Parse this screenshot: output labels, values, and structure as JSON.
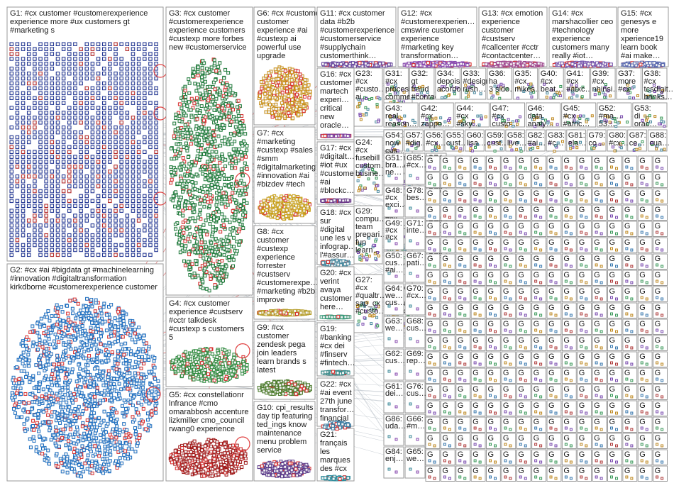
{
  "colors": {
    "background": "#ffffff",
    "box_border": "#9a9a9a",
    "edge_gray": "#9aa6b0",
    "edge_red": "#e06060",
    "loop_red": "#e04040"
  },
  "groups": [
    {
      "id": "G1",
      "lines": [
        "G1: #cx customer #customerexperience",
        "experience more #ux customers gt",
        "#marketing s"
      ],
      "color": "#1a2f8f",
      "style": "grid"
    },
    {
      "id": "G2",
      "lines": [
        "G2: #cx #ai #bigdata gt #machinelearning",
        "#innovation #digitaltransformation",
        "kirkdborne #customerexperience customer"
      ],
      "color": "#1f6fc0",
      "style": "cluster"
    },
    {
      "id": "G3",
      "lines": [
        "G3: #cx customer",
        "#customerexperience",
        "experience customers",
        "#custexp more forbes",
        "new #customerservice"
      ],
      "color": "#1e7a3a",
      "style": "cluster"
    },
    {
      "id": "G4",
      "lines": [
        "G4: #cx customer",
        "experience #custserv",
        "#cctr talkdesk",
        "#custexp s customers",
        "5"
      ],
      "color": "#2e8a3e",
      "style": "cluster"
    },
    {
      "id": "G5",
      "lines": [
        "G5: #cx constellationr",
        "lnfrance #cmo",
        "omarabbosh accenture",
        "lizkmiller cmo_council",
        "rwang0 experience"
      ],
      "color": "#a01818",
      "style": "cluster"
    },
    {
      "id": "G6",
      "lines": [
        "G6: #cx #customexpe…",
        "customer",
        "experience #ai",
        "#custexp ai",
        "powerful use",
        "upgrade"
      ],
      "color": "#c8901a",
      "style": "cluster"
    },
    {
      "id": "G7",
      "lines": [
        "G7: #cx",
        "#marketing",
        "#custexp #sales",
        "#smm",
        "#digitalmarketing",
        "#innovation #ai",
        "#bizdev #tech"
      ],
      "color": "#c8a01a",
      "style": "cluster"
    },
    {
      "id": "G8",
      "lines": [
        "G8: #cx",
        "customer",
        "#custexp",
        "experience",
        "forrester",
        "#custserv",
        "#customerexpe…",
        "#marketing #b2b",
        "improve"
      ],
      "color": "#b8a030",
      "style": "cluster"
    },
    {
      "id": "G9",
      "lines": [
        "G9: #cx",
        "customer",
        "zendesk pega",
        "join leaders",
        "learn brands s",
        "latest"
      ],
      "color": "#4a7a2a",
      "style": "cluster"
    },
    {
      "id": "G10",
      "lines": [
        "G10: cpi_results",
        "day tip featuring",
        "ted_ings know",
        "maintenance",
        "menu problem",
        "service"
      ],
      "color": "#5a3a8a",
      "style": "cluster"
    },
    {
      "id": "G11",
      "lines": [
        "G11: #cx customer",
        "data #b2b",
        "#customerexperience",
        "#customerservice",
        "#supplychain",
        "customerthink…"
      ],
      "color": "#6a4aa0",
      "style": "cluster"
    },
    {
      "id": "G12",
      "lines": [
        "G12: #cx",
        "#customerexperien…",
        "cmswire customer",
        "experience",
        "#marketing key",
        "transformation…"
      ],
      "color": "#8a4ab0",
      "style": "cluster"
    },
    {
      "id": "G13",
      "lines": [
        "G13: #cx emotion",
        "experience",
        "customer",
        "#custserv",
        "#callcenter #cctr",
        "#contactcenter…"
      ],
      "color": "#a04a90",
      "style": "cluster"
    },
    {
      "id": "G14",
      "lines": [
        "G14: #cx",
        "marshacollier ceo",
        "#technology",
        "experience",
        "customers many",
        "really #iot…"
      ],
      "color": "#7a5ab0",
      "style": "cluster"
    },
    {
      "id": "G15",
      "lines": [
        "G15: #cx",
        "genesys e",
        "more",
        "xperience19",
        "learn book",
        "#ai make…"
      ],
      "color": "#5a6ab0",
      "style": "cluster"
    },
    {
      "id": "G16",
      "lines": [
        "G16: #cx",
        "customer",
        "martech",
        "experi…",
        "critical",
        "new",
        "oracle…"
      ],
      "color": "#7a3a9a",
      "style": "cluster"
    },
    {
      "id": "G17",
      "lines": [
        "G17: #cx",
        "#digitalt…",
        "#iot #ux",
        "#customer",
        "#ai",
        "#blockc…"
      ],
      "color": "#6a3a8a",
      "style": "cluster"
    },
    {
      "id": "G18",
      "lines": [
        "G18: #cx",
        "sur",
        "#digital",
        "une les v",
        "infograp…",
        "l'#assur…"
      ],
      "color": "#4a8aa0",
      "style": "cluster"
    },
    {
      "id": "G19",
      "lines": [
        "G19:",
        "#banking",
        "#cx dei",
        "#finserv",
        "#fintech…"
      ],
      "color": "#3a8a8a",
      "style": "cluster"
    },
    {
      "id": "G20",
      "lines": [
        "G20: #cx",
        "verint",
        "avaya",
        "customer",
        "here…"
      ],
      "color": "#3a9a7a",
      "style": "cluster"
    },
    {
      "id": "G21",
      "lines": [
        "G21:",
        "français",
        "les",
        "marques",
        "des #cx"
      ],
      "color": "#2a8a9a",
      "style": "cluster"
    },
    {
      "id": "G22",
      "lines": [
        "G22: #cx",
        "#ai event",
        "27th june",
        "transfor…",
        "financial"
      ],
      "color": "#3a7aa0",
      "style": "cluster"
    }
  ],
  "mini_groups": [
    {
      "label": "G23:",
      "lines": [
        "#cx",
        "#custo…",
        "ai…"
      ]
    },
    {
      "label": "G25:",
      "lines": [
        "#ai",
        "#machi…",
        "#reactis",
        "sale…"
      ]
    },
    {
      "label": "G24:",
      "lines": [
        "#cx",
        "fusebill",
        "custom…",
        "busine…"
      ]
    },
    {
      "label": "G28:",
      "lines": [
        "#cx",
        "insights",
        "giesec…",
        "money…"
      ]
    },
    {
      "label": "G29:",
      "lines": [
        "compu…",
        "team",
        "prepari…",
        "fun",
        "learn…"
      ]
    },
    {
      "label": "G26:",
      "lines": [
        "#cx",
        "teleopti",
        "new",
        "standa…"
      ]
    },
    {
      "label": "G27:",
      "lines": [
        "#cx",
        "#qualtr…",
        "sap_cx",
        "#custo…"
      ]
    },
    {
      "label": "G30:",
      "lines": [
        "#cx #cs",
        "deptve…",
        "custom…",
        "check…"
      ]
    },
    {
      "label": "G31:",
      "lines": [
        "#cx",
        "process",
        "commerc…"
      ]
    },
    {
      "label": "G32:",
      "lines": [
        "gt",
        "fraud",
        "#contact…"
      ]
    },
    {
      "label": "G34:",
      "lines": [
        "depois",
        "acordo…"
      ]
    },
    {
      "label": "G33:",
      "lines": [
        "#design",
        "rush…"
      ]
    },
    {
      "label": "G36:",
      "lines": [
        "ha",
        "3 sido…"
      ]
    },
    {
      "label": "G35:",
      "lines": [
        "#cx",
        "mikes…"
      ]
    },
    {
      "label": "G40:",
      "lines": [
        "#cx",
        "beat…"
      ]
    },
    {
      "label": "G41:",
      "lines": [
        "#cx",
        "#atxc…"
      ]
    },
    {
      "label": "G39:",
      "lines": [
        "#cx",
        "nhinsi…"
      ]
    },
    {
      "label": "G37:",
      "lines": [
        "more",
        "#cx"
      ]
    },
    {
      "label": "G38:",
      "lines": [
        "#cx",
        "tcsdigit…",
        "banks…"
      ]
    },
    {
      "label": "G43:",
      "lines": [
        "real",
        "reason…"
      ]
    },
    {
      "label": "G42:",
      "lines": [
        "#cx",
        "zappo…"
      ]
    },
    {
      "label": "G44:",
      "lines": [
        "#cx",
        "#sky…"
      ]
    },
    {
      "label": "G47:",
      "lines": [
        "#cx",
        "custo…"
      ]
    },
    {
      "label": "G46:",
      "lines": [
        "data",
        "analy…"
      ]
    },
    {
      "label": "G45:",
      "lines": [
        "#cx",
        "#afric…"
      ]
    },
    {
      "label": "G52:",
      "lines": [
        "#ma…",
        "53…"
      ]
    },
    {
      "label": "G53:",
      "lines": [
        "di",
        "orac…"
      ]
    },
    {
      "label": "G54:",
      "lines": [
        "now",
        "cus…"
      ]
    },
    {
      "label": "G57:",
      "lines": [
        "#dig…"
      ]
    },
    {
      "label": "G56:",
      "lines": [
        "#cx…"
      ]
    },
    {
      "label": "G55:",
      "lines": [
        "cust…"
      ]
    },
    {
      "label": "G60:",
      "lines": [
        "lisa…"
      ]
    },
    {
      "label": "G59:",
      "lines": [
        "cust…"
      ]
    },
    {
      "label": "G58:",
      "lines": [
        "live…"
      ]
    },
    {
      "label": "G82:",
      "lines": [
        "#ai…"
      ]
    },
    {
      "label": "G83:",
      "lines": [
        "#c…"
      ]
    },
    {
      "label": "G81:",
      "lines": [
        "ela…"
      ]
    },
    {
      "label": "G79:",
      "lines": [
        "co…"
      ]
    },
    {
      "label": "G80:",
      "lines": [
        "#cx…"
      ]
    },
    {
      "label": "G87:",
      "lines": [
        "ce…"
      ]
    },
    {
      "label": "G88:",
      "lines": [
        "cua…"
      ]
    }
  ],
  "column_labels": [
    [
      "G51:",
      "bra…",
      "ne…"
    ],
    [
      "G48:",
      "#cx",
      "exci…"
    ],
    [
      "G49:",
      "#cx",
      "#cx"
    ],
    [
      "G50:",
      "cus…",
      "#ai…"
    ],
    [
      "G64:",
      "we…",
      "cus…"
    ],
    [
      "G63:",
      "we…"
    ],
    [
      "G62:",
      "cus…"
    ],
    [
      "G61:",
      "dei…"
    ],
    [
      "G86:",
      "uda…"
    ],
    [
      "G84:",
      "enj…"
    ],
    [
      "G85:",
      "#cx…"
    ],
    [
      "G78:",
      "bes…"
    ],
    [
      "G71:",
      "inte…"
    ],
    [
      "G67:",
      "pati…"
    ],
    [
      "G70:",
      "#cx…"
    ],
    [
      "G68:",
      "cus…"
    ],
    [
      "G69:",
      "rep…"
    ],
    [
      "G76:",
      "cus…"
    ],
    [
      "G66:",
      "#m…"
    ],
    [
      "G65:",
      "we…"
    ],
    [
      "G74:",
      "#cx…"
    ],
    [
      "G77:",
      "#ec…"
    ],
    [
      "G75:",
      "gt…"
    ],
    [
      "G73:",
      "#cx…"
    ]
  ]
}
